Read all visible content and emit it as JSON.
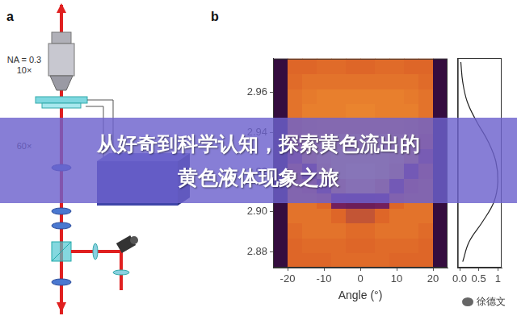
{
  "panels": [
    {
      "label": "a",
      "texts": [
        "NA = 0.3",
        "10×",
        "60×"
      ]
    },
    {
      "label": "b"
    }
  ],
  "chart_data": [
    {
      "type": "heatmap",
      "xlabel": "Angle (°)",
      "xlim": [
        -24,
        24
      ],
      "xticks": [
        -20,
        -10,
        0,
        10,
        20
      ],
      "ylim": [
        2.872,
        2.977
      ],
      "yticks": [
        2.88,
        {
          "value": 2.9,
          "label": "2.90"
        },
        2.92,
        2.94,
        2.96
      ],
      "grid": false,
      "x_edges": [
        -24,
        -20,
        -16,
        -12,
        -8,
        -4,
        0,
        4,
        8,
        12,
        16,
        20,
        24
      ],
      "y_edges": [
        2.872,
        2.8795,
        2.887,
        2.8945,
        2.902,
        2.9095,
        2.917,
        2.9245,
        2.932,
        2.9395,
        2.947,
        2.9545,
        2.962,
        2.9695,
        2.977
      ],
      "z": [
        [
          0.08,
          0.5,
          0.5,
          0.5,
          0.52,
          0.52,
          0.52,
          0.52,
          0.5,
          0.5,
          0.5,
          0.08
        ],
        [
          0.08,
          0.5,
          0.52,
          0.52,
          0.52,
          0.5,
          0.5,
          0.52,
          0.52,
          0.52,
          0.5,
          0.08
        ],
        [
          0.08,
          0.52,
          0.55,
          0.55,
          0.55,
          0.52,
          0.52,
          0.55,
          0.55,
          0.55,
          0.52,
          0.08
        ],
        [
          0.08,
          0.55,
          0.55,
          0.55,
          0.5,
          0.45,
          0.45,
          0.5,
          0.55,
          0.55,
          0.55,
          0.08
        ],
        [
          0.08,
          0.55,
          0.55,
          0.5,
          0.3,
          0.28,
          0.28,
          0.3,
          0.5,
          0.55,
          0.55,
          0.08
        ],
        [
          0.08,
          0.55,
          0.5,
          0.35,
          0.7,
          0.8,
          0.8,
          0.7,
          0.35,
          0.5,
          0.55,
          0.08
        ],
        [
          0.08,
          0.5,
          0.35,
          0.75,
          0.85,
          0.9,
          0.9,
          0.85,
          0.75,
          0.35,
          0.5,
          0.08
        ],
        [
          0.08,
          0.4,
          0.7,
          0.8,
          0.85,
          0.85,
          0.85,
          0.85,
          0.8,
          0.7,
          0.4,
          0.08
        ],
        [
          0.08,
          0.5,
          0.68,
          0.72,
          0.75,
          0.75,
          0.75,
          0.75,
          0.72,
          0.68,
          0.5,
          0.08
        ],
        [
          0.08,
          0.55,
          0.62,
          0.65,
          0.65,
          0.65,
          0.65,
          0.65,
          0.65,
          0.62,
          0.55,
          0.08
        ],
        [
          0.08,
          0.55,
          0.6,
          0.6,
          0.6,
          0.62,
          0.62,
          0.6,
          0.6,
          0.6,
          0.55,
          0.08
        ],
        [
          0.08,
          0.55,
          0.58,
          0.6,
          0.6,
          0.6,
          0.6,
          0.6,
          0.6,
          0.58,
          0.55,
          0.08
        ],
        [
          0.08,
          0.52,
          0.55,
          0.55,
          0.55,
          0.55,
          0.55,
          0.55,
          0.55,
          0.55,
          0.52,
          0.08
        ],
        [
          0.08,
          0.5,
          0.5,
          0.52,
          0.52,
          0.5,
          0.5,
          0.52,
          0.52,
          0.5,
          0.5,
          0.08
        ]
      ]
    },
    {
      "type": "line",
      "x": [
        0.03,
        0.08,
        0.2,
        0.45,
        0.75,
        0.95,
        1.0,
        0.9,
        0.6,
        0.25,
        0.08
      ],
      "y": [
        2.975,
        2.965,
        2.955,
        2.945,
        2.935,
        2.925,
        2.915,
        2.905,
        2.895,
        2.885,
        2.875
      ],
      "xlim": [
        -0.05,
        1.1
      ],
      "xticks": [
        {
          "value": 0,
          "label": "0.0"
        },
        {
          "value": 0.5,
          "label": "0.5"
        },
        1
      ],
      "ylim": [
        2.872,
        2.977
      ],
      "tick_labels": "x",
      "color": "#222222",
      "grid": false
    }
  ],
  "banner": [
    "从好奇到科学认知，探索黄色流出的",
    "黄色液体现象之旅"
  ],
  "watermark": "徐德文"
}
